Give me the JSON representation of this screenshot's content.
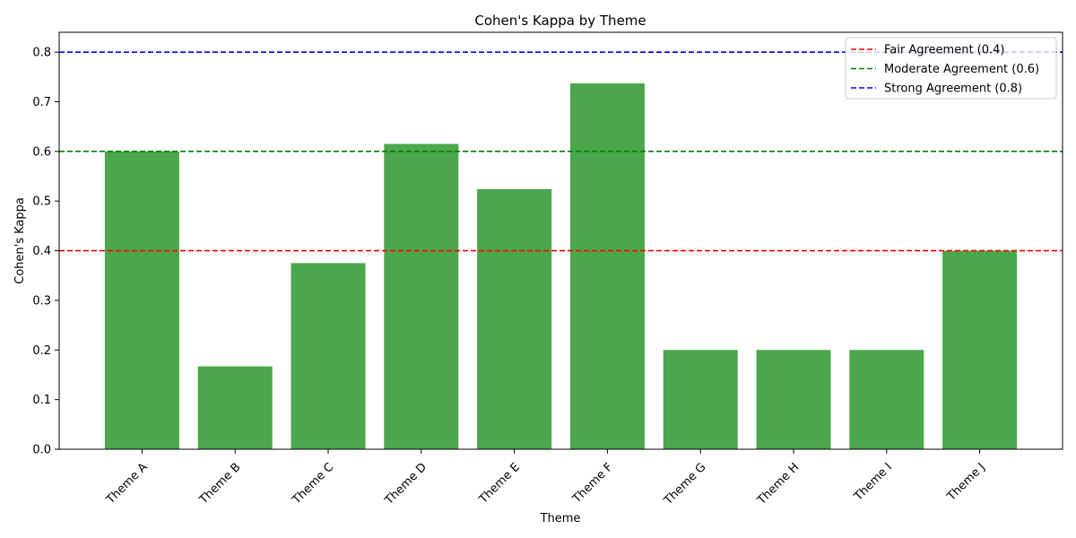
{
  "chart_data": {
    "type": "bar",
    "title": "Cohen's Kappa by Theme",
    "xlabel": "Theme",
    "ylabel": "Cohen's Kappa",
    "categories": [
      "Theme A",
      "Theme B",
      "Theme C",
      "Theme D",
      "Theme E",
      "Theme F",
      "Theme G",
      "Theme H",
      "Theme I",
      "Theme J"
    ],
    "values": [
      0.6,
      0.167,
      0.375,
      0.615,
      0.524,
      0.737,
      0.2,
      0.2,
      0.2,
      0.4
    ],
    "ylim": [
      0,
      0.84
    ],
    "yticks": [
      0.0,
      0.1,
      0.2,
      0.3,
      0.4,
      0.5,
      0.6,
      0.7,
      0.8
    ],
    "ytick_labels": [
      "0.0",
      "0.1",
      "0.2",
      "0.3",
      "0.4",
      "0.5",
      "0.6",
      "0.7",
      "0.8"
    ],
    "bar_color": "#4ca64c",
    "grid": false,
    "legend_position": "top-right",
    "reference_lines": [
      {
        "label": "Fair Agreement (0.4)",
        "value": 0.4,
        "color": "#ff0000"
      },
      {
        "label": "Moderate Agreement (0.6)",
        "value": 0.6,
        "color": "#008000"
      },
      {
        "label": "Strong Agreement (0.8)",
        "value": 0.8,
        "color": "#0000ff"
      }
    ]
  }
}
